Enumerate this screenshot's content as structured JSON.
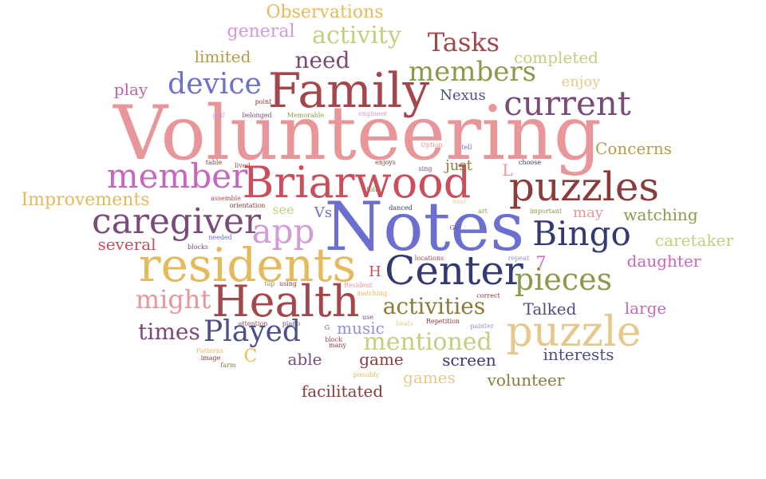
{
  "colors": {
    "pink": "#e8969a",
    "periwinkle": "#6b6fd0",
    "navy": "#333a72",
    "maroon": "#a3474c",
    "crimson": "#c94f5c",
    "gold": "#e6b95a",
    "orchid": "#c766c0",
    "olive": "#8a9a4a",
    "sage": "#c2cf7c",
    "plum": "#7a4a78",
    "tan": "#e6c98a",
    "rust": "#8a3c3c",
    "khaki": "#b89a4a",
    "lilac": "#d39ad8",
    "slate": "#4a4f8a",
    "mauve": "#b866a8"
  },
  "words": [
    {
      "text": "Volunteering",
      "color": "#e8969a"
    },
    {
      "text": "Notes",
      "color": "#6b6fd0"
    },
    {
      "text": "Family",
      "color": "#a3474c"
    },
    {
      "text": "Briarwood",
      "color": "#c94f5c"
    },
    {
      "text": "residents",
      "color": "#e6b95a"
    },
    {
      "text": "Health",
      "color": "#a3474c"
    },
    {
      "text": "Center",
      "color": "#333a72"
    },
    {
      "text": "puzzles",
      "color": "#8a3c3c"
    },
    {
      "text": "puzzle",
      "color": "#e6c98a"
    },
    {
      "text": "caregiver",
      "color": "#7a4a78"
    },
    {
      "text": "member",
      "color": "#c766c0"
    },
    {
      "text": "current",
      "color": "#7a4a78"
    },
    {
      "text": "Bingo",
      "color": "#333a72"
    },
    {
      "text": "app",
      "color": "#d39ad8"
    },
    {
      "text": "pieces",
      "color": "#8a9a4a"
    },
    {
      "text": "device",
      "color": "#6b6fd0"
    },
    {
      "text": "Played",
      "color": "#4a4f8a"
    },
    {
      "text": "members",
      "color": "#8a9a4a"
    },
    {
      "text": "mentioned",
      "color": "#c2cf7c"
    },
    {
      "text": "activities",
      "color": "#8a7a3a"
    },
    {
      "text": "activity",
      "color": "#c2cf7c"
    },
    {
      "text": "Tasks",
      "color": "#a3474c"
    },
    {
      "text": "need",
      "color": "#7a4a78"
    },
    {
      "text": "might",
      "color": "#e8969a"
    },
    {
      "text": "times",
      "color": "#7a4a78"
    },
    {
      "text": "Observations",
      "color": "#e6b95a"
    },
    {
      "text": "general",
      "color": "#d39ad8"
    },
    {
      "text": "limited",
      "color": "#b89a4a"
    },
    {
      "text": "completed",
      "color": "#c2cf7c"
    },
    {
      "text": "enjoy",
      "color": "#e6c98a"
    },
    {
      "text": "play",
      "color": "#b866a8"
    },
    {
      "text": "Nexus",
      "color": "#4a4f8a"
    },
    {
      "text": "Concerns",
      "color": "#b89a4a"
    },
    {
      "text": "Improvements",
      "color": "#e6b95a"
    },
    {
      "text": "just",
      "color": "#8a7a3a"
    },
    {
      "text": "L",
      "color": "#e8969a"
    },
    {
      "text": "see",
      "color": "#c2cf7c"
    },
    {
      "text": "Vs",
      "color": "#6b6fd0"
    },
    {
      "text": "may",
      "color": "#e8969a"
    },
    {
      "text": "watching",
      "color": "#8a9a4a"
    },
    {
      "text": "caretaker",
      "color": "#c2cf7c"
    },
    {
      "text": "several",
      "color": "#c94f5c"
    },
    {
      "text": "daughter",
      "color": "#c766c0"
    },
    {
      "text": "7",
      "color": "#c766c0"
    },
    {
      "text": "H",
      "color": "#c94f5c"
    },
    {
      "text": "large",
      "color": "#c766c0"
    },
    {
      "text": "Talked",
      "color": "#4a4f8a"
    },
    {
      "text": "interests",
      "color": "#4a4f8a"
    },
    {
      "text": "music",
      "color": "#8f92d8"
    },
    {
      "text": "C",
      "color": "#e6b95a"
    },
    {
      "text": "able",
      "color": "#7a4a78"
    },
    {
      "text": "game",
      "color": "#8a3c3c"
    },
    {
      "text": "screen",
      "color": "#333a72"
    },
    {
      "text": "games",
      "color": "#e6c98a"
    },
    {
      "text": "volunteer",
      "color": "#8a7a3a"
    },
    {
      "text": "facilitated",
      "color": "#8a3c3c"
    },
    {
      "text": "point",
      "color": "#8a3c3c"
    },
    {
      "text": "golf",
      "color": "#d39ad8"
    },
    {
      "text": "belonged",
      "color": "#7a4a78"
    },
    {
      "text": "Memorable",
      "color": "#8a9a4a"
    },
    {
      "text": "engineer",
      "color": "#d39ad8"
    },
    {
      "text": "Option",
      "color": "#e8969a"
    },
    {
      "text": "tell",
      "color": "#6b6fd0"
    },
    {
      "text": "table",
      "color": "#8a3c3c"
    },
    {
      "text": "lived",
      "color": "#a3474c"
    },
    {
      "text": "enjoys",
      "color": "#8a3c3c"
    },
    {
      "text": "sing",
      "color": "#7a4a78"
    },
    {
      "text": "choose",
      "color": "#333a72"
    },
    {
      "text": "full",
      "color": "#8a7a3a"
    },
    {
      "text": "assemble",
      "color": "#a3474c"
    },
    {
      "text": "orientation",
      "color": "#8a3c3c"
    },
    {
      "text": "danced",
      "color": "#333a72"
    },
    {
      "text": "near",
      "color": "#e6c98a"
    },
    {
      "text": "art",
      "color": "#8a9a4a"
    },
    {
      "text": "important",
      "color": "#8a9a4a"
    },
    {
      "text": "needed",
      "color": "#6b6fd0"
    },
    {
      "text": "blocks",
      "color": "#7a4a78"
    },
    {
      "text": "Gv",
      "color": "#7a4a78"
    },
    {
      "text": "locations",
      "color": "#a3474c"
    },
    {
      "text": "repeat",
      "color": "#8f92d8"
    },
    {
      "text": "tap",
      "color": "#8a9a4a"
    },
    {
      "text": "using",
      "color": "#8a3c3c"
    },
    {
      "text": "Resident",
      "color": "#e8969a"
    },
    {
      "text": "matching",
      "color": "#e6b95a"
    },
    {
      "text": "correct",
      "color": "#8a3c3c"
    },
    {
      "text": "use",
      "color": "#7a4a78"
    },
    {
      "text": "attention",
      "color": "#a3474c"
    },
    {
      "text": "piano",
      "color": "#7a4a78"
    },
    {
      "text": "beats",
      "color": "#e6c98a"
    },
    {
      "text": "Repetition",
      "color": "#8a3c3c"
    },
    {
      "text": "painter",
      "color": "#8f92d8"
    },
    {
      "text": "G",
      "color": "#7a4a78"
    },
    {
      "text": "block",
      "color": "#a3474c"
    },
    {
      "text": "many",
      "color": "#8a3c3c"
    },
    {
      "text": "Patterns",
      "color": "#e6b95a"
    },
    {
      "text": "image",
      "color": "#8a3c3c"
    },
    {
      "text": "farm",
      "color": "#8a7a3a"
    },
    {
      "text": "possibly",
      "color": "#e6b95a"
    }
  ]
}
